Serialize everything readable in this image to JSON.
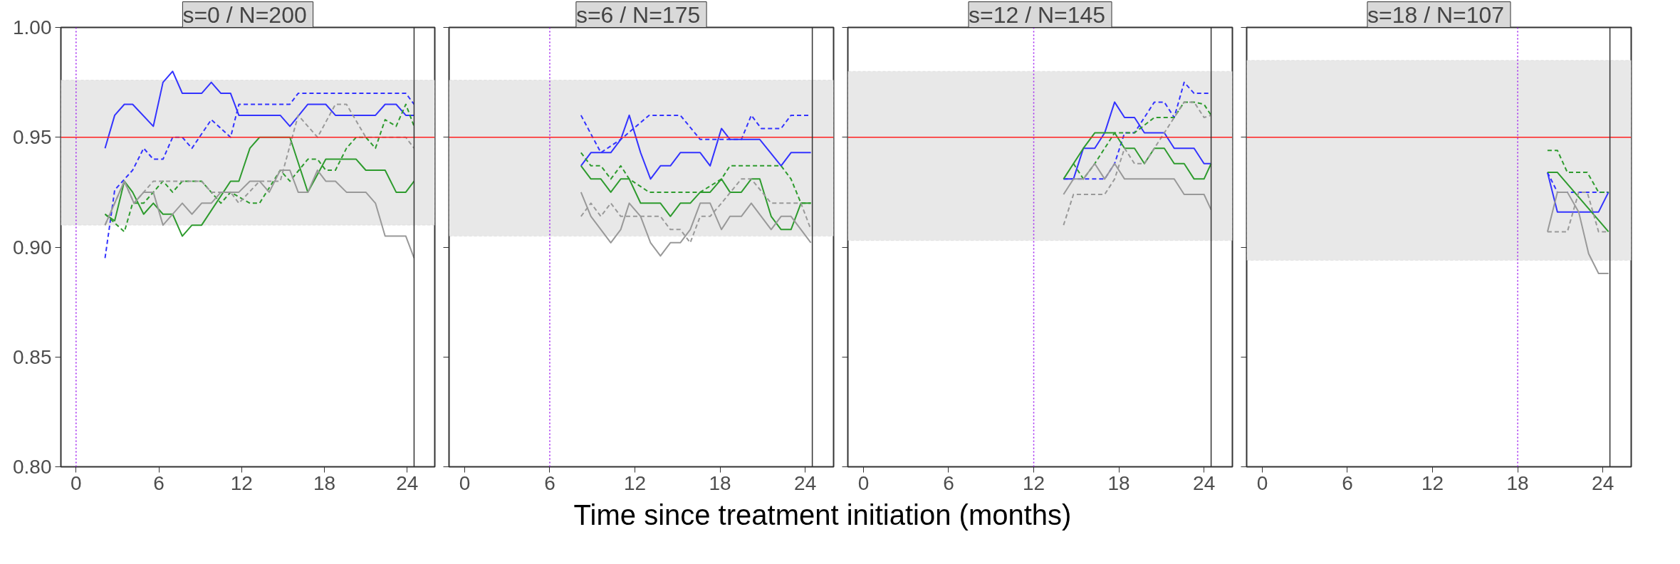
{
  "chart_data": [
    {
      "type": "line",
      "title": "s=0  / N=200",
      "xlabel": "Time since treatment initiation (months)",
      "xlim": [
        -1.1,
        26
      ],
      "ylim": [
        0.8,
        1.0
      ],
      "xticks": [
        0,
        6,
        12,
        18,
        24
      ],
      "yticks": [
        {
          "value": 0.8,
          "label": "0.80"
        },
        {
          "value": 0.85,
          "label": "0.85"
        },
        {
          "value": 0.9,
          "label": "0.90"
        },
        {
          "value": 0.95,
          "label": "0.95"
        },
        {
          "value": 1.0,
          "label": "1.00"
        }
      ],
      "grid": false,
      "bands": [
        {
          "axis": "y",
          "from": 0.91,
          "to": 0.976,
          "color": "#e8e8e8"
        }
      ],
      "ref_lines": [
        {
          "axis": "y",
          "value": 0.95,
          "color": "#ff2020"
        },
        {
          "axis": "x",
          "value": 0,
          "color": "#a020f0",
          "line_style": "dotted"
        },
        {
          "axis": "x",
          "value": 24.5,
          "color": "#333333"
        }
      ],
      "series": [
        {
          "color": "#3333ff",
          "line_style": "solid",
          "x": [
            2.1,
            2.8,
            3.5,
            4.1,
            5.6,
            6.3,
            7.0,
            7.7,
            9.1,
            9.8,
            10.5,
            11.2,
            11.8,
            14.8,
            15.5,
            16.8,
            18.1,
            18.8,
            21.7,
            22.4,
            23.2,
            23.9,
            24.5
          ],
          "values": [
            0.945,
            0.96,
            0.965,
            0.965,
            0.955,
            0.975,
            0.98,
            0.97,
            0.97,
            0.975,
            0.97,
            0.97,
            0.96,
            0.96,
            0.955,
            0.965,
            0.965,
            0.96,
            0.96,
            0.965,
            0.965,
            0.96,
            0.96
          ]
        },
        {
          "color": "#3333ff",
          "line_style": "dashed",
          "x": [
            2.1,
            2.8,
            4.1,
            4.9,
            5.6,
            6.3,
            7.0,
            7.7,
            8.4,
            9.8,
            11.2,
            11.8,
            15.5,
            16.1,
            23.9,
            24.5
          ],
          "values": [
            0.895,
            0.926,
            0.935,
            0.945,
            0.94,
            0.94,
            0.95,
            0.95,
            0.945,
            0.958,
            0.95,
            0.965,
            0.965,
            0.97,
            0.97,
            0.965
          ]
        },
        {
          "color": "#2e9b2e",
          "line_style": "solid",
          "x": [
            2.1,
            2.8,
            3.5,
            4.1,
            4.9,
            5.6,
            6.3,
            7.0,
            7.7,
            8.4,
            9.1,
            11.2,
            11.8,
            12.6,
            13.3,
            15.5,
            16.8,
            18.1,
            20.3,
            21.0,
            22.4,
            23.2,
            23.9,
            24.5
          ],
          "values": [
            0.915,
            0.912,
            0.93,
            0.925,
            0.915,
            0.92,
            0.915,
            0.915,
            0.905,
            0.91,
            0.91,
            0.93,
            0.93,
            0.945,
            0.95,
            0.95,
            0.925,
            0.94,
            0.94,
            0.935,
            0.935,
            0.925,
            0.925,
            0.93
          ]
        },
        {
          "color": "#2e9b2e",
          "line_style": "dashed",
          "x": [
            2.1,
            3.5,
            4.1,
            4.9,
            5.6,
            6.3,
            7.0,
            7.7,
            9.1,
            10.5,
            11.2,
            12.6,
            13.3,
            14.8,
            15.5,
            16.8,
            17.5,
            18.1,
            18.8,
            19.6,
            20.3,
            21.0,
            21.7,
            22.4,
            23.2,
            23.9,
            24.5
          ],
          "values": [
            0.915,
            0.907,
            0.92,
            0.92,
            0.925,
            0.93,
            0.925,
            0.93,
            0.93,
            0.92,
            0.925,
            0.92,
            0.92,
            0.935,
            0.93,
            0.94,
            0.94,
            0.935,
            0.935,
            0.945,
            0.95,
            0.95,
            0.945,
            0.958,
            0.955,
            0.965,
            0.955
          ]
        },
        {
          "color": "#999999",
          "line_style": "solid",
          "x": [
            2.1,
            3.5,
            4.2,
            4.9,
            5.6,
            6.3,
            7.7,
            8.4,
            9.1,
            9.8,
            10.5,
            11.8,
            12.6,
            13.3,
            14.0,
            14.8,
            15.5,
            16.1,
            16.8,
            17.5,
            18.1,
            18.8,
            19.6,
            21.0,
            21.7,
            22.4,
            23.9,
            24.5
          ],
          "values": [
            0.91,
            0.93,
            0.92,
            0.925,
            0.925,
            0.91,
            0.92,
            0.915,
            0.92,
            0.92,
            0.925,
            0.925,
            0.93,
            0.93,
            0.925,
            0.935,
            0.935,
            0.925,
            0.925,
            0.935,
            0.93,
            0.93,
            0.925,
            0.925,
            0.92,
            0.905,
            0.905,
            0.895
          ]
        },
        {
          "color": "#999999",
          "line_style": "dashed",
          "x": [
            2.1,
            2.8,
            3.5,
            4.2,
            4.9,
            5.6,
            9.1,
            9.8,
            11.2,
            11.8,
            13.3,
            14.8,
            16.1,
            16.8,
            17.5,
            18.8,
            19.6,
            21.0,
            23.9,
            24.5
          ],
          "values": [
            0.91,
            0.92,
            0.93,
            0.92,
            0.925,
            0.93,
            0.93,
            0.925,
            0.925,
            0.92,
            0.93,
            0.93,
            0.96,
            0.955,
            0.95,
            0.965,
            0.965,
            0.95,
            0.95,
            0.945
          ]
        }
      ]
    },
    {
      "type": "line",
      "title": "s=6  / N=175",
      "xlim": [
        -1.1,
        26
      ],
      "ylim": [
        0.8,
        1.0
      ],
      "xticks": [
        0,
        6,
        12,
        18,
        24
      ],
      "yticks": [
        0.8,
        0.85,
        0.9,
        0.95,
        1.0
      ],
      "tick_labels": "x",
      "grid": false,
      "bands": [
        {
          "axis": "y",
          "from": 0.905,
          "to": 0.976,
          "color": "#e8e8e8"
        }
      ],
      "ref_lines": [
        {
          "axis": "y",
          "value": 0.95,
          "color": "#ff2020"
        },
        {
          "axis": "x",
          "value": 6,
          "color": "#a020f0",
          "line_style": "dotted"
        },
        {
          "axis": "x",
          "value": 24.5,
          "color": "#333333"
        }
      ],
      "series": [
        {
          "color": "#3333ff",
          "line_style": "solid",
          "x": [
            8.2,
            8.9,
            10.3,
            11.0,
            11.6,
            12.4,
            13.1,
            13.8,
            14.5,
            15.2,
            16.6,
            17.3,
            18.1,
            18.7,
            20.8,
            22.3,
            23.0,
            24.4
          ],
          "values": [
            0.937,
            0.943,
            0.943,
            0.949,
            0.96,
            0.943,
            0.931,
            0.937,
            0.937,
            0.943,
            0.943,
            0.937,
            0.954,
            0.949,
            0.949,
            0.937,
            0.943,
            0.943
          ]
        },
        {
          "color": "#3333ff",
          "line_style": "dashed",
          "x": [
            8.2,
            9.6,
            11.0,
            13.0,
            15.2,
            16.6,
            19.5,
            20.2,
            20.9,
            22.3,
            23.0,
            24.4
          ],
          "values": [
            0.96,
            0.943,
            0.949,
            0.96,
            0.96,
            0.949,
            0.949,
            0.96,
            0.954,
            0.954,
            0.96,
            0.96
          ]
        },
        {
          "color": "#2e9b2e",
          "line_style": "solid",
          "x": [
            8.2,
            8.9,
            9.6,
            10.3,
            11.0,
            11.6,
            12.4,
            13.8,
            14.5,
            15.2,
            15.9,
            16.6,
            17.3,
            18.1,
            18.7,
            19.5,
            20.2,
            20.8,
            21.6,
            22.3,
            23.0,
            23.7,
            24.4
          ],
          "values": [
            0.937,
            0.931,
            0.931,
            0.925,
            0.931,
            0.931,
            0.92,
            0.92,
            0.914,
            0.92,
            0.92,
            0.925,
            0.925,
            0.931,
            0.925,
            0.925,
            0.931,
            0.931,
            0.914,
            0.908,
            0.908,
            0.92,
            0.92
          ]
        },
        {
          "color": "#2e9b2e",
          "line_style": "dashed",
          "x": [
            8.2,
            8.9,
            9.6,
            10.3,
            11.0,
            11.6,
            13.0,
            16.6,
            18.1,
            18.7,
            22.3,
            23.0,
            23.7,
            24.4
          ],
          "values": [
            0.943,
            0.937,
            0.937,
            0.931,
            0.937,
            0.931,
            0.925,
            0.925,
            0.931,
            0.937,
            0.937,
            0.931,
            0.92,
            0.92
          ]
        },
        {
          "color": "#999999",
          "line_style": "solid",
          "x": [
            8.2,
            8.9,
            10.3,
            11.0,
            11.6,
            12.4,
            13.1,
            13.8,
            14.5,
            15.2,
            15.9,
            16.6,
            17.3,
            18.1,
            18.7,
            19.5,
            20.2,
            21.6,
            22.3,
            23.0,
            24.4
          ],
          "values": [
            0.925,
            0.914,
            0.902,
            0.908,
            0.92,
            0.914,
            0.902,
            0.896,
            0.902,
            0.902,
            0.908,
            0.92,
            0.92,
            0.908,
            0.914,
            0.914,
            0.92,
            0.908,
            0.914,
            0.914,
            0.902
          ]
        },
        {
          "color": "#999999",
          "line_style": "dashed",
          "x": [
            8.2,
            8.9,
            9.6,
            10.3,
            11.0,
            13.8,
            14.5,
            15.2,
            15.9,
            16.6,
            17.3,
            18.1,
            19.5,
            20.2,
            21.6,
            23.7,
            24.4
          ],
          "values": [
            0.914,
            0.92,
            0.914,
            0.92,
            0.914,
            0.914,
            0.908,
            0.908,
            0.902,
            0.914,
            0.914,
            0.92,
            0.931,
            0.931,
            0.92,
            0.92,
            0.908
          ]
        }
      ]
    },
    {
      "type": "line",
      "title": "s=12  / N=145",
      "xlim": [
        -1.1,
        26
      ],
      "ylim": [
        0.8,
        1.0
      ],
      "xticks": [
        0,
        6,
        12,
        18,
        24
      ],
      "yticks": [
        0.8,
        0.85,
        0.9,
        0.95,
        1.0
      ],
      "tick_labels": "x",
      "grid": false,
      "bands": [
        {
          "axis": "y",
          "from": 0.903,
          "to": 0.98,
          "color": "#e8e8e8"
        }
      ],
      "ref_lines": [
        {
          "axis": "y",
          "value": 0.95,
          "color": "#ff2020"
        },
        {
          "axis": "x",
          "value": 12,
          "color": "#a020f0",
          "line_style": "dotted"
        },
        {
          "axis": "x",
          "value": 24.5,
          "color": "#333333"
        }
      ],
      "series": [
        {
          "color": "#3333ff",
          "line_style": "solid",
          "x": [
            14.1,
            14.8,
            15.5,
            16.3,
            17.0,
            17.7,
            18.4,
            19.1,
            19.8,
            21.2,
            21.9,
            23.3,
            24.0,
            24.5
          ],
          "values": [
            0.931,
            0.931,
            0.945,
            0.945,
            0.952,
            0.966,
            0.959,
            0.959,
            0.952,
            0.952,
            0.945,
            0.945,
            0.938,
            0.938
          ]
        },
        {
          "color": "#3333ff",
          "line_style": "dashed",
          "x": [
            14.1,
            17.0,
            17.7,
            18.4,
            19.1,
            19.8,
            20.5,
            21.2,
            21.9,
            22.6,
            23.3,
            24.5
          ],
          "values": [
            0.931,
            0.931,
            0.938,
            0.952,
            0.952,
            0.959,
            0.966,
            0.966,
            0.959,
            0.975,
            0.97,
            0.97
          ]
        },
        {
          "color": "#2e9b2e",
          "line_style": "solid",
          "x": [
            14.1,
            15.5,
            16.3,
            17.7,
            18.4,
            19.1,
            19.8,
            20.5,
            21.2,
            21.9,
            22.6,
            23.3,
            24.0,
            24.5
          ],
          "values": [
            0.931,
            0.945,
            0.952,
            0.952,
            0.945,
            0.945,
            0.938,
            0.945,
            0.945,
            0.938,
            0.938,
            0.931,
            0.931,
            0.938
          ]
        },
        {
          "color": "#2e9b2e",
          "line_style": "dashed",
          "x": [
            14.8,
            15.5,
            16.3,
            17.7,
            19.1,
            20.5,
            21.9,
            22.6,
            23.3,
            24.0,
            24.5
          ],
          "values": [
            0.938,
            0.931,
            0.938,
            0.952,
            0.952,
            0.959,
            0.959,
            0.966,
            0.966,
            0.965,
            0.96
          ]
        },
        {
          "color": "#999999",
          "line_style": "solid",
          "x": [
            14.1,
            14.8,
            15.5,
            16.3,
            17.0,
            17.7,
            18.4,
            21.9,
            22.6,
            24.0,
            24.5
          ],
          "values": [
            0.924,
            0.931,
            0.931,
            0.938,
            0.931,
            0.938,
            0.931,
            0.931,
            0.924,
            0.924,
            0.917
          ]
        },
        {
          "color": "#999999",
          "line_style": "dashed",
          "x": [
            14.1,
            14.8,
            17.0,
            17.7,
            18.4,
            19.1,
            19.8,
            20.5,
            21.2,
            21.9,
            22.6,
            23.3,
            24.0,
            24.5
          ],
          "values": [
            0.91,
            0.924,
            0.924,
            0.931,
            0.945,
            0.938,
            0.938,
            0.945,
            0.952,
            0.959,
            0.966,
            0.966,
            0.959,
            0.96
          ]
        }
      ]
    },
    {
      "type": "line",
      "title": "s=18  / N=107",
      "xlim": [
        -1.1,
        26
      ],
      "ylim": [
        0.8,
        1.0
      ],
      "xticks": [
        0,
        6,
        12,
        18,
        24
      ],
      "yticks": [
        0.8,
        0.85,
        0.9,
        0.95,
        1.0
      ],
      "tick_labels": "x",
      "grid": false,
      "bands": [
        {
          "axis": "y",
          "from": 0.894,
          "to": 0.985,
          "color": "#e8e8e8"
        }
      ],
      "ref_lines": [
        {
          "axis": "y",
          "value": 0.95,
          "color": "#ff2020"
        },
        {
          "axis": "x",
          "value": 18,
          "color": "#a020f0",
          "line_style": "dotted"
        },
        {
          "axis": "x",
          "value": 24.5,
          "color": "#333333"
        }
      ],
      "series": [
        {
          "color": "#3333ff",
          "line_style": "solid",
          "x": [
            20.1,
            20.8,
            23.7,
            24.4
          ],
          "values": [
            0.934,
            0.916,
            0.916,
            0.925
          ]
        },
        {
          "color": "#3333ff",
          "line_style": "dashed",
          "x": [
            20.1,
            20.8,
            24.4
          ],
          "values": [
            0.934,
            0.925,
            0.925
          ]
        },
        {
          "color": "#2e9b2e",
          "line_style": "solid",
          "x": [
            20.1,
            20.8,
            24.4
          ],
          "values": [
            0.934,
            0.934,
            0.907
          ]
        },
        {
          "color": "#2e9b2e",
          "line_style": "dashed",
          "x": [
            20.1,
            20.8,
            21.5,
            22.9,
            23.7,
            24.4
          ],
          "values": [
            0.944,
            0.944,
            0.934,
            0.934,
            0.925,
            0.925
          ]
        },
        {
          "color": "#999999",
          "line_style": "solid",
          "x": [
            20.1,
            20.8,
            21.5,
            22.3,
            23.0,
            23.7,
            24.4
          ],
          "values": [
            0.907,
            0.925,
            0.925,
            0.916,
            0.897,
            0.888,
            0.888
          ]
        },
        {
          "color": "#999999",
          "line_style": "dashed",
          "x": [
            20.1,
            21.5,
            22.3,
            22.9,
            23.7,
            24.4
          ],
          "values": [
            0.907,
            0.907,
            0.925,
            0.925,
            0.907,
            0.907
          ]
        }
      ]
    }
  ]
}
